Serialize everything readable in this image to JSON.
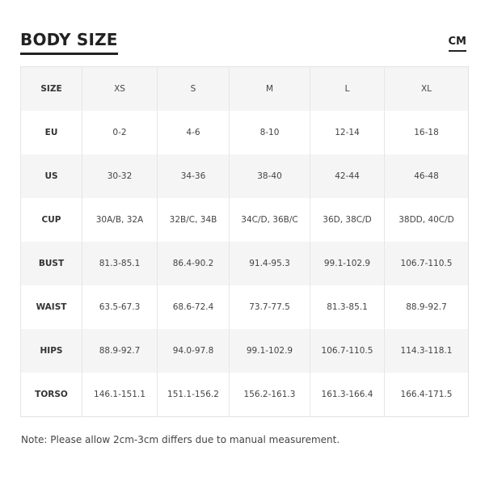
{
  "title": "BODY SIZE",
  "unit": "CM",
  "table": {
    "rows": [
      {
        "label": "SIZE",
        "values": [
          "XS",
          "S",
          "M",
          "L",
          "XL"
        ]
      },
      {
        "label": "EU",
        "values": [
          "0-2",
          "4-6",
          "8-10",
          "12-14",
          "16-18"
        ]
      },
      {
        "label": "US",
        "values": [
          "30-32",
          "34-36",
          "38-40",
          "42-44",
          "46-48"
        ]
      },
      {
        "label": "CUP",
        "values": [
          "30A/B, 32A",
          "32B/C, 34B",
          "34C/D, 36B/C",
          "36D, 38C/D",
          "38DD, 40C/D"
        ]
      },
      {
        "label": "BUST",
        "values": [
          "81.3-85.1",
          "86.4-90.2",
          "91.4-95.3",
          "99.1-102.9",
          "106.7-110.5"
        ]
      },
      {
        "label": "WAIST",
        "values": [
          "63.5-67.3",
          "68.6-72.4",
          "73.7-77.5",
          "81.3-85.1",
          "88.9-92.7"
        ]
      },
      {
        "label": "HIPS",
        "values": [
          "88.9-92.7",
          "94.0-97.8",
          "99.1-102.9",
          "106.7-110.5",
          "114.3-118.1"
        ]
      },
      {
        "label": "TORSO",
        "values": [
          "146.1-151.1",
          "151.1-156.2",
          "156.2-161.3",
          "161.3-166.4",
          "166.4-171.5"
        ]
      }
    ]
  },
  "note": "Note: Please allow 2cm-3cm differs due to manual measurement."
}
